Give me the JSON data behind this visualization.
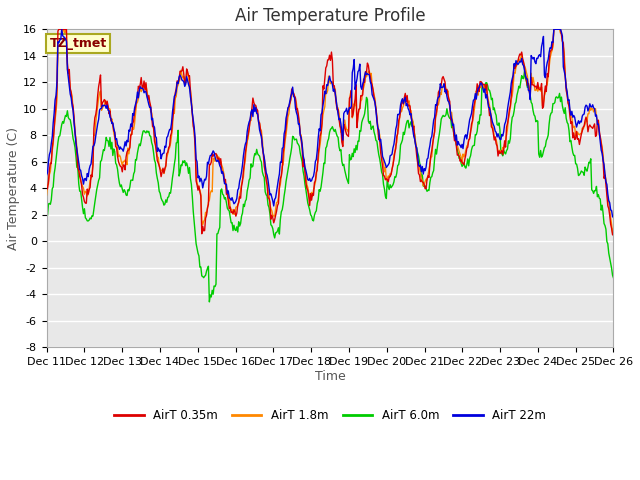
{
  "title": "Air Temperature Profile",
  "xlabel": "Time",
  "ylabel": "Air Temperature (C)",
  "ylim": [
    -8,
    16
  ],
  "xlim": [
    0,
    15
  ],
  "xtick_labels": [
    "Dec 11",
    "Dec 12",
    "Dec 13",
    "Dec 14",
    "Dec 15",
    "Dec 16",
    "Dec 17",
    "Dec 18",
    "Dec 19",
    "Dec 20",
    "Dec 21",
    "Dec 22",
    "Dec 23",
    "Dec 24",
    "Dec 25",
    "Dec 26"
  ],
  "ytick_positions": [
    -8,
    -6,
    -4,
    -2,
    0,
    2,
    4,
    6,
    8,
    10,
    12,
    14,
    16
  ],
  "series_colors": [
    "#dd0000",
    "#ff8800",
    "#00cc00",
    "#0000dd"
  ],
  "series_labels": [
    "AirT 0.35m",
    "AirT 1.8m",
    "AirT 6.0m",
    "AirT 22m"
  ],
  "fig_bg_color": "#ffffff",
  "plot_bg_color": "#e8e8e8",
  "grid_color": "#ffffff",
  "annotation_text": "TZ_tmet",
  "annotation_bg": "#ffffcc",
  "annotation_fg": "#880000",
  "title_fontsize": 12,
  "axis_label_fontsize": 9,
  "tick_fontsize": 8
}
